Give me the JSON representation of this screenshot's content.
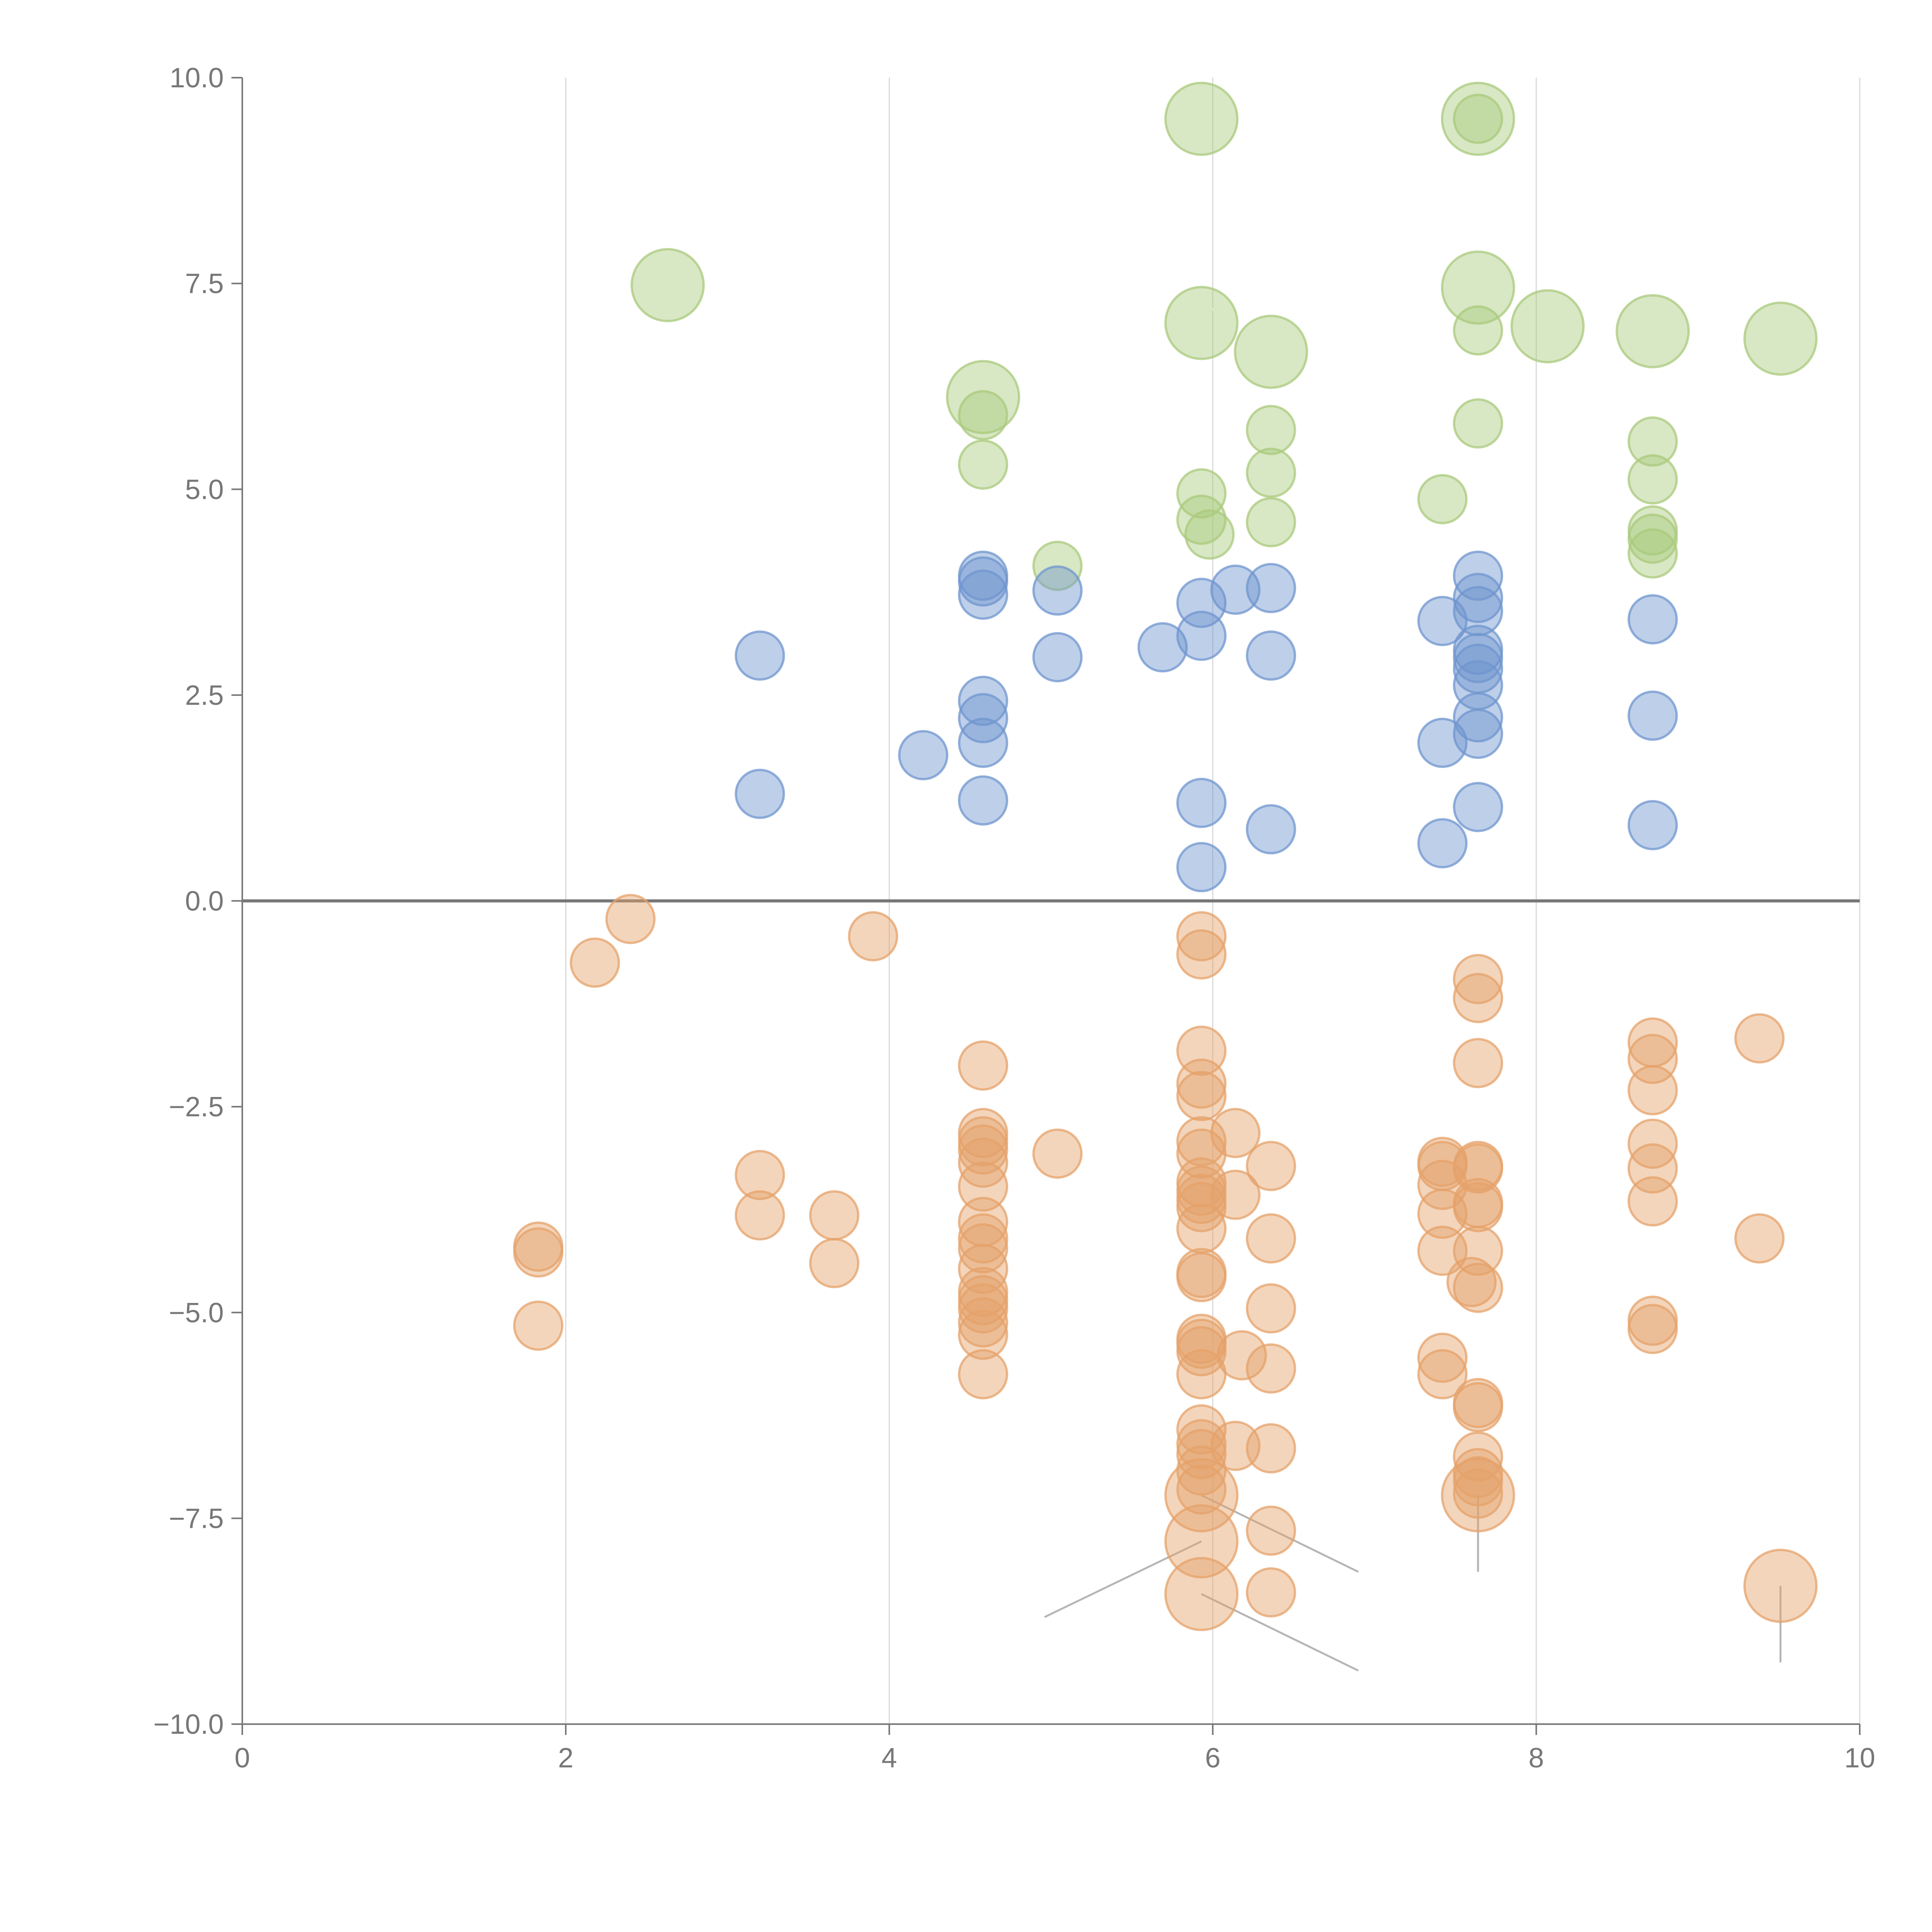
{
  "chart_data": {
    "type": "scatter",
    "title": "",
    "xlabel": "",
    "ylabel": "",
    "xlim": [
      0,
      10
    ],
    "ylim": [
      -10,
      10
    ],
    "x_ticks": [
      0,
      2,
      4,
      6,
      8,
      10
    ],
    "x_tick_labels": [
      "0",
      "2",
      "4",
      "6",
      "8",
      "10"
    ],
    "y_ticks": [
      10,
      7.5,
      5,
      2.5,
      0,
      -2.5,
      -5,
      -7.5,
      -10
    ],
    "y_tick_labels": [
      "10.0",
      "7.5",
      "5.0",
      "2.5",
      "0.0",
      "−2.5",
      "−5.0",
      "−7.5",
      "−10.0"
    ],
    "grid": "vertical",
    "reference_line_y": 0,
    "series": [
      {
        "name": "green",
        "color": "#a9c97c",
        "fill_opacity": 0.45,
        "points": [
          [
            2.63,
            7.48,
            1
          ],
          [
            4.58,
            6.12,
            1
          ],
          [
            5.93,
            9.5,
            1
          ],
          [
            5.93,
            7.02,
            1
          ],
          [
            6.36,
            6.67,
            1
          ],
          [
            7.64,
            9.5,
            1
          ],
          [
            7.64,
            7.45,
            1
          ],
          [
            8.07,
            6.98,
            1
          ],
          [
            8.72,
            6.92,
            1
          ],
          [
            9.51,
            6.83,
            1
          ],
          [
            4.58,
            5.9,
            0
          ],
          [
            4.58,
            5.3,
            0
          ],
          [
            5.04,
            4.07,
            0
          ],
          [
            5.93,
            4.95,
            0
          ],
          [
            5.93,
            4.63,
            0
          ],
          [
            5.98,
            4.45,
            0
          ],
          [
            6.36,
            5.72,
            0
          ],
          [
            6.36,
            5.2,
            0
          ],
          [
            6.36,
            4.6,
            0
          ],
          [
            7.42,
            4.88,
            0
          ],
          [
            7.64,
            9.5,
            0
          ],
          [
            7.64,
            6.93,
            0
          ],
          [
            7.64,
            5.8,
            0
          ],
          [
            8.72,
            5.58,
            0
          ],
          [
            8.72,
            5.12,
            0
          ],
          [
            8.72,
            4.5,
            0
          ],
          [
            8.72,
            4.4,
            0
          ],
          [
            8.72,
            4.22,
            0
          ]
        ]
      },
      {
        "name": "blue",
        "color": "#6f95cf",
        "fill_opacity": 0.45,
        "points": [
          [
            3.2,
            2.98,
            0
          ],
          [
            3.2,
            1.3,
            0
          ],
          [
            4.21,
            1.77,
            0
          ],
          [
            4.58,
            3.95,
            0
          ],
          [
            4.58,
            3.88,
            0
          ],
          [
            4.58,
            3.72,
            0
          ],
          [
            4.58,
            2.43,
            0
          ],
          [
            4.58,
            2.22,
            0
          ],
          [
            4.58,
            1.92,
            0
          ],
          [
            4.58,
            1.22,
            0
          ],
          [
            5.04,
            3.77,
            0
          ],
          [
            5.04,
            2.96,
            0
          ],
          [
            5.69,
            3.08,
            0
          ],
          [
            5.93,
            3.62,
            0
          ],
          [
            5.93,
            3.22,
            0
          ],
          [
            5.93,
            1.19,
            0
          ],
          [
            5.93,
            0.41,
            0
          ],
          [
            6.14,
            3.78,
            0
          ],
          [
            6.36,
            3.8,
            0
          ],
          [
            6.36,
            2.98,
            0
          ],
          [
            6.36,
            0.87,
            0
          ],
          [
            7.42,
            3.4,
            0
          ],
          [
            7.42,
            1.92,
            0
          ],
          [
            7.42,
            0.7,
            0
          ],
          [
            7.64,
            3.95,
            0
          ],
          [
            7.64,
            3.68,
            0
          ],
          [
            7.64,
            3.52,
            0
          ],
          [
            7.64,
            3.05,
            0
          ],
          [
            7.64,
            2.95,
            0
          ],
          [
            7.64,
            2.82,
            0
          ],
          [
            7.64,
            2.62,
            0
          ],
          [
            7.64,
            2.23,
            0
          ],
          [
            7.64,
            2.03,
            0
          ],
          [
            7.64,
            1.14,
            0
          ],
          [
            8.72,
            3.42,
            0
          ],
          [
            8.72,
            2.25,
            0
          ],
          [
            8.72,
            0.92,
            0
          ]
        ]
      },
      {
        "name": "orange",
        "color": "#e5a26a",
        "fill_opacity": 0.45,
        "points": [
          [
            5.93,
            -7.22,
            1
          ],
          [
            5.93,
            -7.78,
            1
          ],
          [
            5.93,
            -8.42,
            1
          ],
          [
            7.64,
            -7.22,
            1
          ],
          [
            9.51,
            -8.32,
            1
          ],
          [
            1.83,
            -4.2,
            0
          ],
          [
            1.83,
            -4.27,
            0
          ],
          [
            1.83,
            -5.16,
            0
          ],
          [
            2.18,
            -0.75,
            0
          ],
          [
            2.4,
            -0.22,
            0
          ],
          [
            3.2,
            -3.33,
            0
          ],
          [
            3.2,
            -3.82,
            0
          ],
          [
            3.66,
            -3.82,
            0
          ],
          [
            3.66,
            -4.4,
            0
          ],
          [
            3.9,
            -0.43,
            0
          ],
          [
            4.58,
            -2.0,
            0
          ],
          [
            4.58,
            -2.82,
            0
          ],
          [
            4.58,
            -2.92,
            0
          ],
          [
            4.58,
            -3.02,
            0
          ],
          [
            4.58,
            -3.18,
            0
          ],
          [
            4.58,
            -3.47,
            0
          ],
          [
            4.58,
            -3.9,
            0
          ],
          [
            4.58,
            -4.1,
            0
          ],
          [
            4.58,
            -4.22,
            0
          ],
          [
            4.58,
            -4.47,
            0
          ],
          [
            4.58,
            -4.75,
            0
          ],
          [
            4.58,
            -4.85,
            0
          ],
          [
            4.58,
            -4.95,
            0
          ],
          [
            4.58,
            -5.12,
            0
          ],
          [
            4.58,
            -5.27,
            0
          ],
          [
            4.58,
            -5.75,
            0
          ],
          [
            5.04,
            -3.07,
            0
          ],
          [
            5.93,
            -0.43,
            0
          ],
          [
            5.93,
            -0.65,
            0
          ],
          [
            5.93,
            -1.82,
            0
          ],
          [
            5.93,
            -2.22,
            0
          ],
          [
            5.93,
            -2.37,
            0
          ],
          [
            5.93,
            -2.92,
            0
          ],
          [
            5.93,
            -3.07,
            0
          ],
          [
            5.93,
            -3.42,
            0
          ],
          [
            5.93,
            -3.52,
            0
          ],
          [
            5.93,
            -3.62,
            0
          ],
          [
            5.93,
            -3.72,
            0
          ],
          [
            5.93,
            -3.98,
            0
          ],
          [
            5.93,
            -4.52,
            0
          ],
          [
            5.93,
            -4.57,
            0
          ],
          [
            5.93,
            -5.32,
            0
          ],
          [
            5.93,
            -5.38,
            0
          ],
          [
            5.93,
            -5.47,
            0
          ],
          [
            5.93,
            -5.75,
            0
          ],
          [
            5.93,
            -6.42,
            0
          ],
          [
            5.93,
            -6.6,
            0
          ],
          [
            5.93,
            -6.72,
            0
          ],
          [
            5.93,
            -6.92,
            0
          ],
          [
            5.93,
            -7.15,
            0
          ],
          [
            6.14,
            -2.82,
            0
          ],
          [
            6.14,
            -3.57,
            0
          ],
          [
            6.14,
            -6.62,
            0
          ],
          [
            6.18,
            -5.52,
            0
          ],
          [
            6.36,
            -3.22,
            0
          ],
          [
            6.36,
            -4.1,
            0
          ],
          [
            6.36,
            -4.95,
            0
          ],
          [
            6.36,
            -5.68,
            0
          ],
          [
            6.36,
            -6.65,
            0
          ],
          [
            6.36,
            -7.65,
            0
          ],
          [
            6.36,
            -8.4,
            0
          ],
          [
            7.42,
            -3.17,
            0
          ],
          [
            7.42,
            -3.22,
            0
          ],
          [
            7.42,
            -3.45,
            0
          ],
          [
            7.42,
            -3.8,
            0
          ],
          [
            7.42,
            -4.25,
            0
          ],
          [
            7.42,
            -5.55,
            0
          ],
          [
            7.42,
            -5.75,
            0
          ],
          [
            7.6,
            -4.63,
            0
          ],
          [
            7.64,
            -0.95,
            0
          ],
          [
            7.64,
            -1.18,
            0
          ],
          [
            7.64,
            -1.97,
            0
          ],
          [
            7.64,
            -3.22,
            0
          ],
          [
            7.64,
            -3.25,
            0
          ],
          [
            7.64,
            -3.67,
            0
          ],
          [
            7.64,
            -3.72,
            0
          ],
          [
            7.64,
            -4.25,
            0
          ],
          [
            7.64,
            -4.7,
            0
          ],
          [
            7.64,
            -6.1,
            0
          ],
          [
            7.64,
            -6.15,
            0
          ],
          [
            7.64,
            -6.75,
            0
          ],
          [
            7.64,
            -6.95,
            0
          ],
          [
            7.64,
            -7.05,
            0
          ],
          [
            7.64,
            -7.2,
            0
          ],
          [
            8.72,
            -1.72,
            0
          ],
          [
            8.72,
            -1.92,
            0
          ],
          [
            8.72,
            -2.3,
            0
          ],
          [
            8.72,
            -2.95,
            0
          ],
          [
            8.72,
            -3.25,
            0
          ],
          [
            8.72,
            -3.65,
            0
          ],
          [
            8.72,
            -5.1,
            0
          ],
          [
            8.72,
            -5.2,
            0
          ],
          [
            9.38,
            -1.67,
            0
          ],
          [
            9.38,
            -4.1,
            0
          ]
        ]
      }
    ],
    "leader_lines": [
      {
        "color": "#b5b5b5",
        "from": [
          5.93,
          -7.22
        ],
        "to": [
          6.9,
          -8.15
        ]
      },
      {
        "color": "#b5b5b5",
        "from": [
          5.93,
          -7.78
        ],
        "to": [
          4.96,
          -8.7
        ]
      },
      {
        "color": "#b5b5b5",
        "from": [
          5.93,
          -8.42
        ],
        "to": [
          6.9,
          -9.35
        ]
      },
      {
        "color": "#b5b5b5",
        "from": [
          7.64,
          -7.22
        ],
        "to": [
          7.64,
          -8.15
        ]
      },
      {
        "color": "#b5b5b5",
        "from": [
          9.51,
          -8.32
        ],
        "to": [
          9.51,
          -9.25
        ]
      },
      {
        "color": "#ffffff",
        "from": [
          5.93,
          9.5
        ],
        "to": [
          5.68,
          9.55
        ]
      },
      {
        "color": "#ffffff",
        "from": [
          7.64,
          9.5
        ],
        "to": [
          7.35,
          9.55
        ]
      },
      {
        "color": "#ffffff",
        "from": [
          5.93,
          7.02
        ],
        "to": [
          6.05,
          7.3
        ]
      },
      {
        "color": "#ffffff",
        "from": [
          6.36,
          6.67
        ],
        "to": [
          6.4,
          6.4
        ]
      },
      {
        "color": "#ffffff",
        "from": [
          7.64,
          7.45
        ],
        "to": [
          7.62,
          6.9
        ]
      },
      {
        "color": "#ffffff",
        "from": [
          8.07,
          6.98
        ],
        "to": [
          8.25,
          7.15
        ]
      },
      {
        "color": "#ffffff",
        "from": [
          8.72,
          6.92
        ],
        "to": [
          8.9,
          6.65
        ]
      },
      {
        "color": "#ffffff",
        "from": [
          9.51,
          6.83
        ],
        "to": [
          9.49,
          6.5
        ]
      }
    ]
  }
}
